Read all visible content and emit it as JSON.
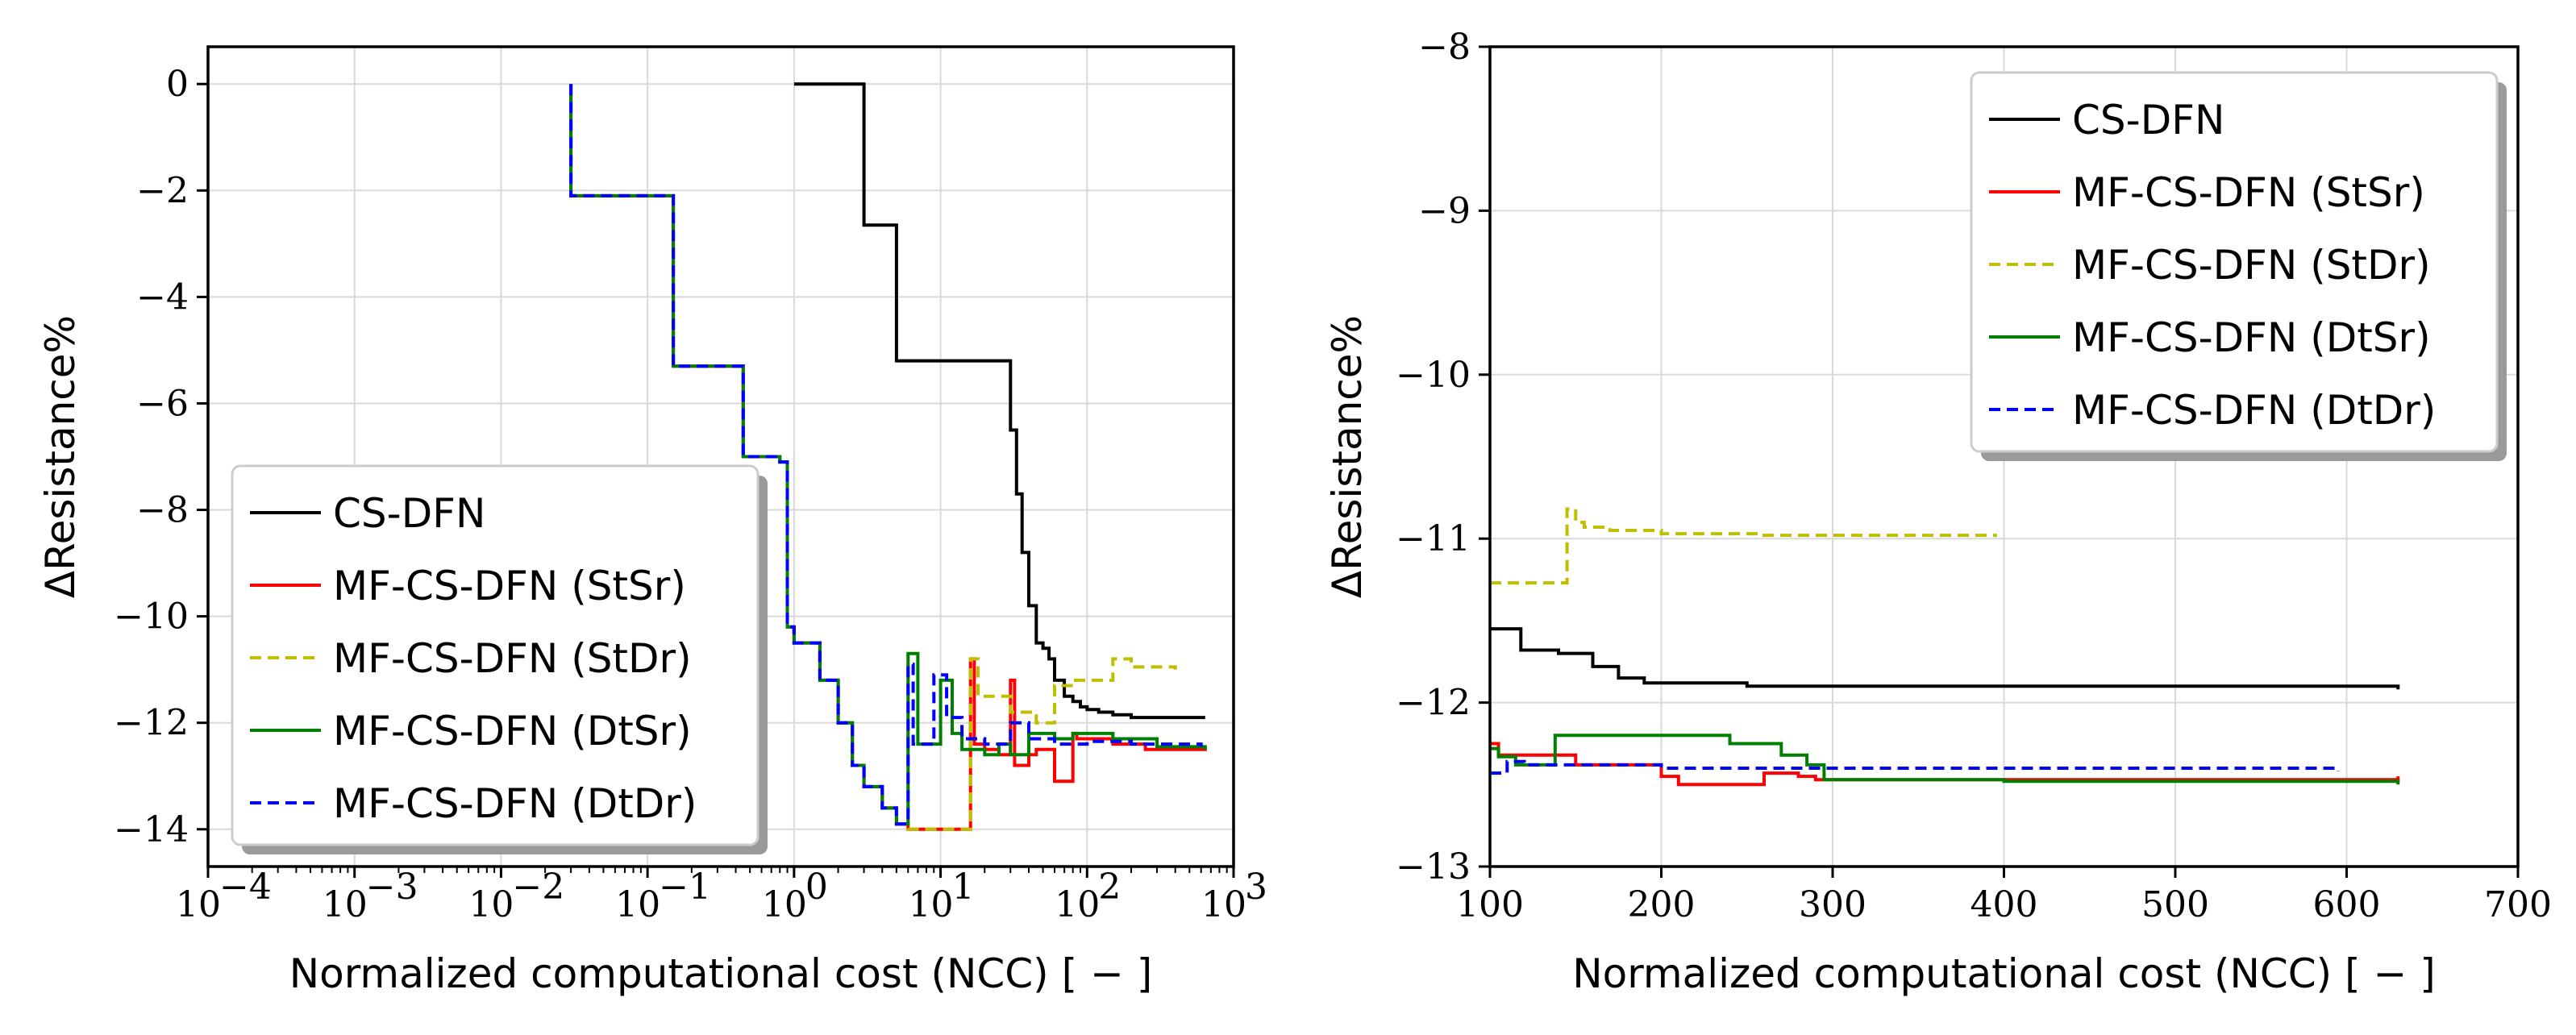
{
  "chart_data": [
    {
      "type": "line",
      "x_scale": "log",
      "xlabel": "Normalized computational cost (NCC) [ − ]",
      "ylabel": "ΔResistance%",
      "xlim": [
        0.0001,
        1000
      ],
      "ylim": [
        -14.7,
        0.7
      ],
      "x_ticks": [
        0.0001,
        0.001,
        0.01,
        0.1,
        1,
        10,
        100,
        1000
      ],
      "x_tick_base": [
        "10",
        "10",
        "10",
        "10",
        "10",
        "10",
        "10",
        "10"
      ],
      "x_tick_exp": [
        "−4",
        "−3",
        "−2",
        "−1",
        "0",
        "1",
        "2",
        "3"
      ],
      "y_ticks": [
        0,
        -2,
        -4,
        -6,
        -8,
        -10,
        -12,
        -14
      ],
      "y_tick_labels": [
        "0",
        "−2",
        "−4",
        "−6",
        "−8",
        "−10",
        "−12",
        "−14"
      ],
      "grid": true,
      "legend_position": "lower-left",
      "series": [
        {
          "name": "CS-DFN",
          "color": "#000000",
          "dash": "solid",
          "x": [
            1,
            3,
            5,
            30,
            33,
            36,
            40,
            45,
            50,
            55,
            60,
            70,
            80,
            90,
            100,
            120,
            150,
            200,
            640
          ],
          "y": [
            0,
            -2.65,
            -5.2,
            -6.5,
            -7.7,
            -8.8,
            -9.8,
            -10.5,
            -10.6,
            -10.8,
            -11.2,
            -11.5,
            -11.6,
            -11.7,
            -11.75,
            -11.8,
            -11.85,
            -11.9,
            -11.9
          ]
        },
        {
          "name": "MF-CS-DFN (StSr)",
          "color": "#ff0000",
          "dash": "solid",
          "x": [
            0.03,
            0.03,
            0.15,
            0.45,
            0.8,
            0.9,
            1.0,
            1.5,
            2,
            2.5,
            3,
            4,
            5,
            6,
            16,
            17,
            20,
            25,
            30,
            32,
            40,
            45,
            60,
            80,
            85,
            150,
            250,
            640
          ],
          "y": [
            0,
            -2.1,
            -5.3,
            -7.0,
            -7.1,
            -10.2,
            -10.5,
            -11.2,
            -12.0,
            -12.8,
            -13.2,
            -13.6,
            -13.9,
            -14.0,
            -10.8,
            -12.4,
            -12.5,
            -12.6,
            -11.2,
            -12.8,
            -12.6,
            -12.5,
            -13.1,
            -12.2,
            -12.3,
            -12.4,
            -12.5,
            -12.45
          ]
        },
        {
          "name": "MF-CS-DFN (StDr)",
          "color": "#bfbf00",
          "dash": "dashed",
          "x": [
            0.03,
            0.03,
            0.15,
            0.45,
            0.8,
            0.9,
            1.0,
            1.5,
            2,
            2.5,
            3,
            4,
            5,
            6,
            16,
            18,
            22,
            30,
            45,
            60,
            80,
            150,
            200,
            400
          ],
          "y": [
            0,
            -2.1,
            -5.3,
            -7.0,
            -7.1,
            -10.2,
            -10.5,
            -11.2,
            -12.0,
            -12.8,
            -13.2,
            -13.6,
            -13.9,
            -14.0,
            -10.8,
            -11.5,
            -11.5,
            -11.8,
            -12.0,
            -11.3,
            -11.2,
            -10.8,
            -10.95,
            -11.0
          ]
        },
        {
          "name": "MF-CS-DFN (DtSr)",
          "color": "#008000",
          "dash": "solid",
          "x": [
            0.03,
            0.03,
            0.15,
            0.45,
            0.8,
            0.9,
            1.0,
            1.5,
            2,
            2.5,
            3,
            4,
            5,
            6,
            7,
            10,
            12,
            14,
            17,
            20,
            25,
            30,
            40,
            60,
            80,
            100,
            150,
            300,
            640
          ],
          "y": [
            0,
            -2.1,
            -5.3,
            -7.0,
            -7.1,
            -10.2,
            -10.5,
            -11.2,
            -12.0,
            -12.8,
            -13.2,
            -13.6,
            -13.9,
            -10.7,
            -12.4,
            -11.2,
            -12.2,
            -12.5,
            -12.5,
            -12.6,
            -12.4,
            -12.6,
            -12.2,
            -12.3,
            -12.2,
            -12.2,
            -12.3,
            -12.45,
            -12.5
          ]
        },
        {
          "name": "MF-CS-DFN (DtDr)",
          "color": "#0000ff",
          "dash": "dashed",
          "x": [
            0.03,
            0.03,
            0.15,
            0.45,
            0.8,
            0.9,
            1.0,
            1.5,
            2,
            2.5,
            3,
            4,
            5,
            6,
            6.5,
            9,
            11,
            14,
            20,
            30,
            40,
            60,
            100,
            200,
            600
          ],
          "y": [
            0,
            -2.1,
            -5.3,
            -7.0,
            -7.1,
            -10.2,
            -10.5,
            -11.2,
            -12.0,
            -12.8,
            -13.2,
            -13.6,
            -13.9,
            -10.9,
            -12.4,
            -11.1,
            -11.9,
            -12.3,
            -12.4,
            -12.0,
            -12.3,
            -12.4,
            -12.35,
            -12.4,
            -12.45
          ]
        }
      ]
    },
    {
      "type": "line",
      "x_scale": "linear",
      "xlabel": "Normalized computational cost (NCC) [ − ]",
      "ylabel": "ΔResistance%",
      "xlim": [
        100,
        700
      ],
      "ylim": [
        -13,
        -8
      ],
      "x_ticks": [
        100,
        200,
        300,
        400,
        500,
        600,
        700
      ],
      "x_tick_labels": [
        "100",
        "200",
        "300",
        "400",
        "500",
        "600",
        "700"
      ],
      "y_ticks": [
        -8,
        -9,
        -10,
        -11,
        -12,
        -13
      ],
      "y_tick_labels": [
        "−8",
        "−9",
        "−10",
        "−11",
        "−12",
        "−13"
      ],
      "grid": true,
      "legend_position": "upper-right",
      "series": [
        {
          "name": "CS-DFN",
          "color": "#000000",
          "dash": "solid",
          "x": [
            100,
            118,
            140,
            160,
            175,
            190,
            250,
            400,
            630
          ],
          "y": [
            -11.55,
            -11.68,
            -11.7,
            -11.78,
            -11.85,
            -11.88,
            -11.9,
            -11.9,
            -11.92
          ]
        },
        {
          "name": "MF-CS-DFN (StSr)",
          "color": "#ff0000",
          "dash": "solid",
          "x": [
            100,
            105,
            150,
            200,
            210,
            260,
            280,
            290,
            630
          ],
          "y": [
            -12.25,
            -12.32,
            -12.38,
            -12.45,
            -12.5,
            -12.43,
            -12.45,
            -12.47,
            -12.45
          ]
        },
        {
          "name": "MF-CS-DFN (StDr)",
          "color": "#bfbf00",
          "dash": "dashed",
          "x": [
            100,
            145,
            150,
            155,
            170,
            200,
            260,
            395
          ],
          "y": [
            -11.27,
            -10.82,
            -10.9,
            -10.93,
            -10.95,
            -10.97,
            -10.98,
            -10.99
          ]
        },
        {
          "name": "MF-CS-DFN (DtSr)",
          "color": "#008000",
          "dash": "solid",
          "x": [
            100,
            105,
            115,
            138,
            240,
            270,
            285,
            295,
            400,
            630
          ],
          "y": [
            -12.28,
            -12.33,
            -12.38,
            -12.2,
            -12.25,
            -12.32,
            -12.38,
            -12.47,
            -12.48,
            -12.5
          ]
        },
        {
          "name": "MF-CS-DFN (DtDr)",
          "color": "#0000ff",
          "dash": "dashed",
          "x": [
            100,
            110,
            120,
            200,
            300,
            400,
            500,
            595
          ],
          "y": [
            -12.43,
            -12.36,
            -12.38,
            -12.4,
            -12.4,
            -12.4,
            -12.4,
            -12.42
          ]
        }
      ]
    }
  ]
}
